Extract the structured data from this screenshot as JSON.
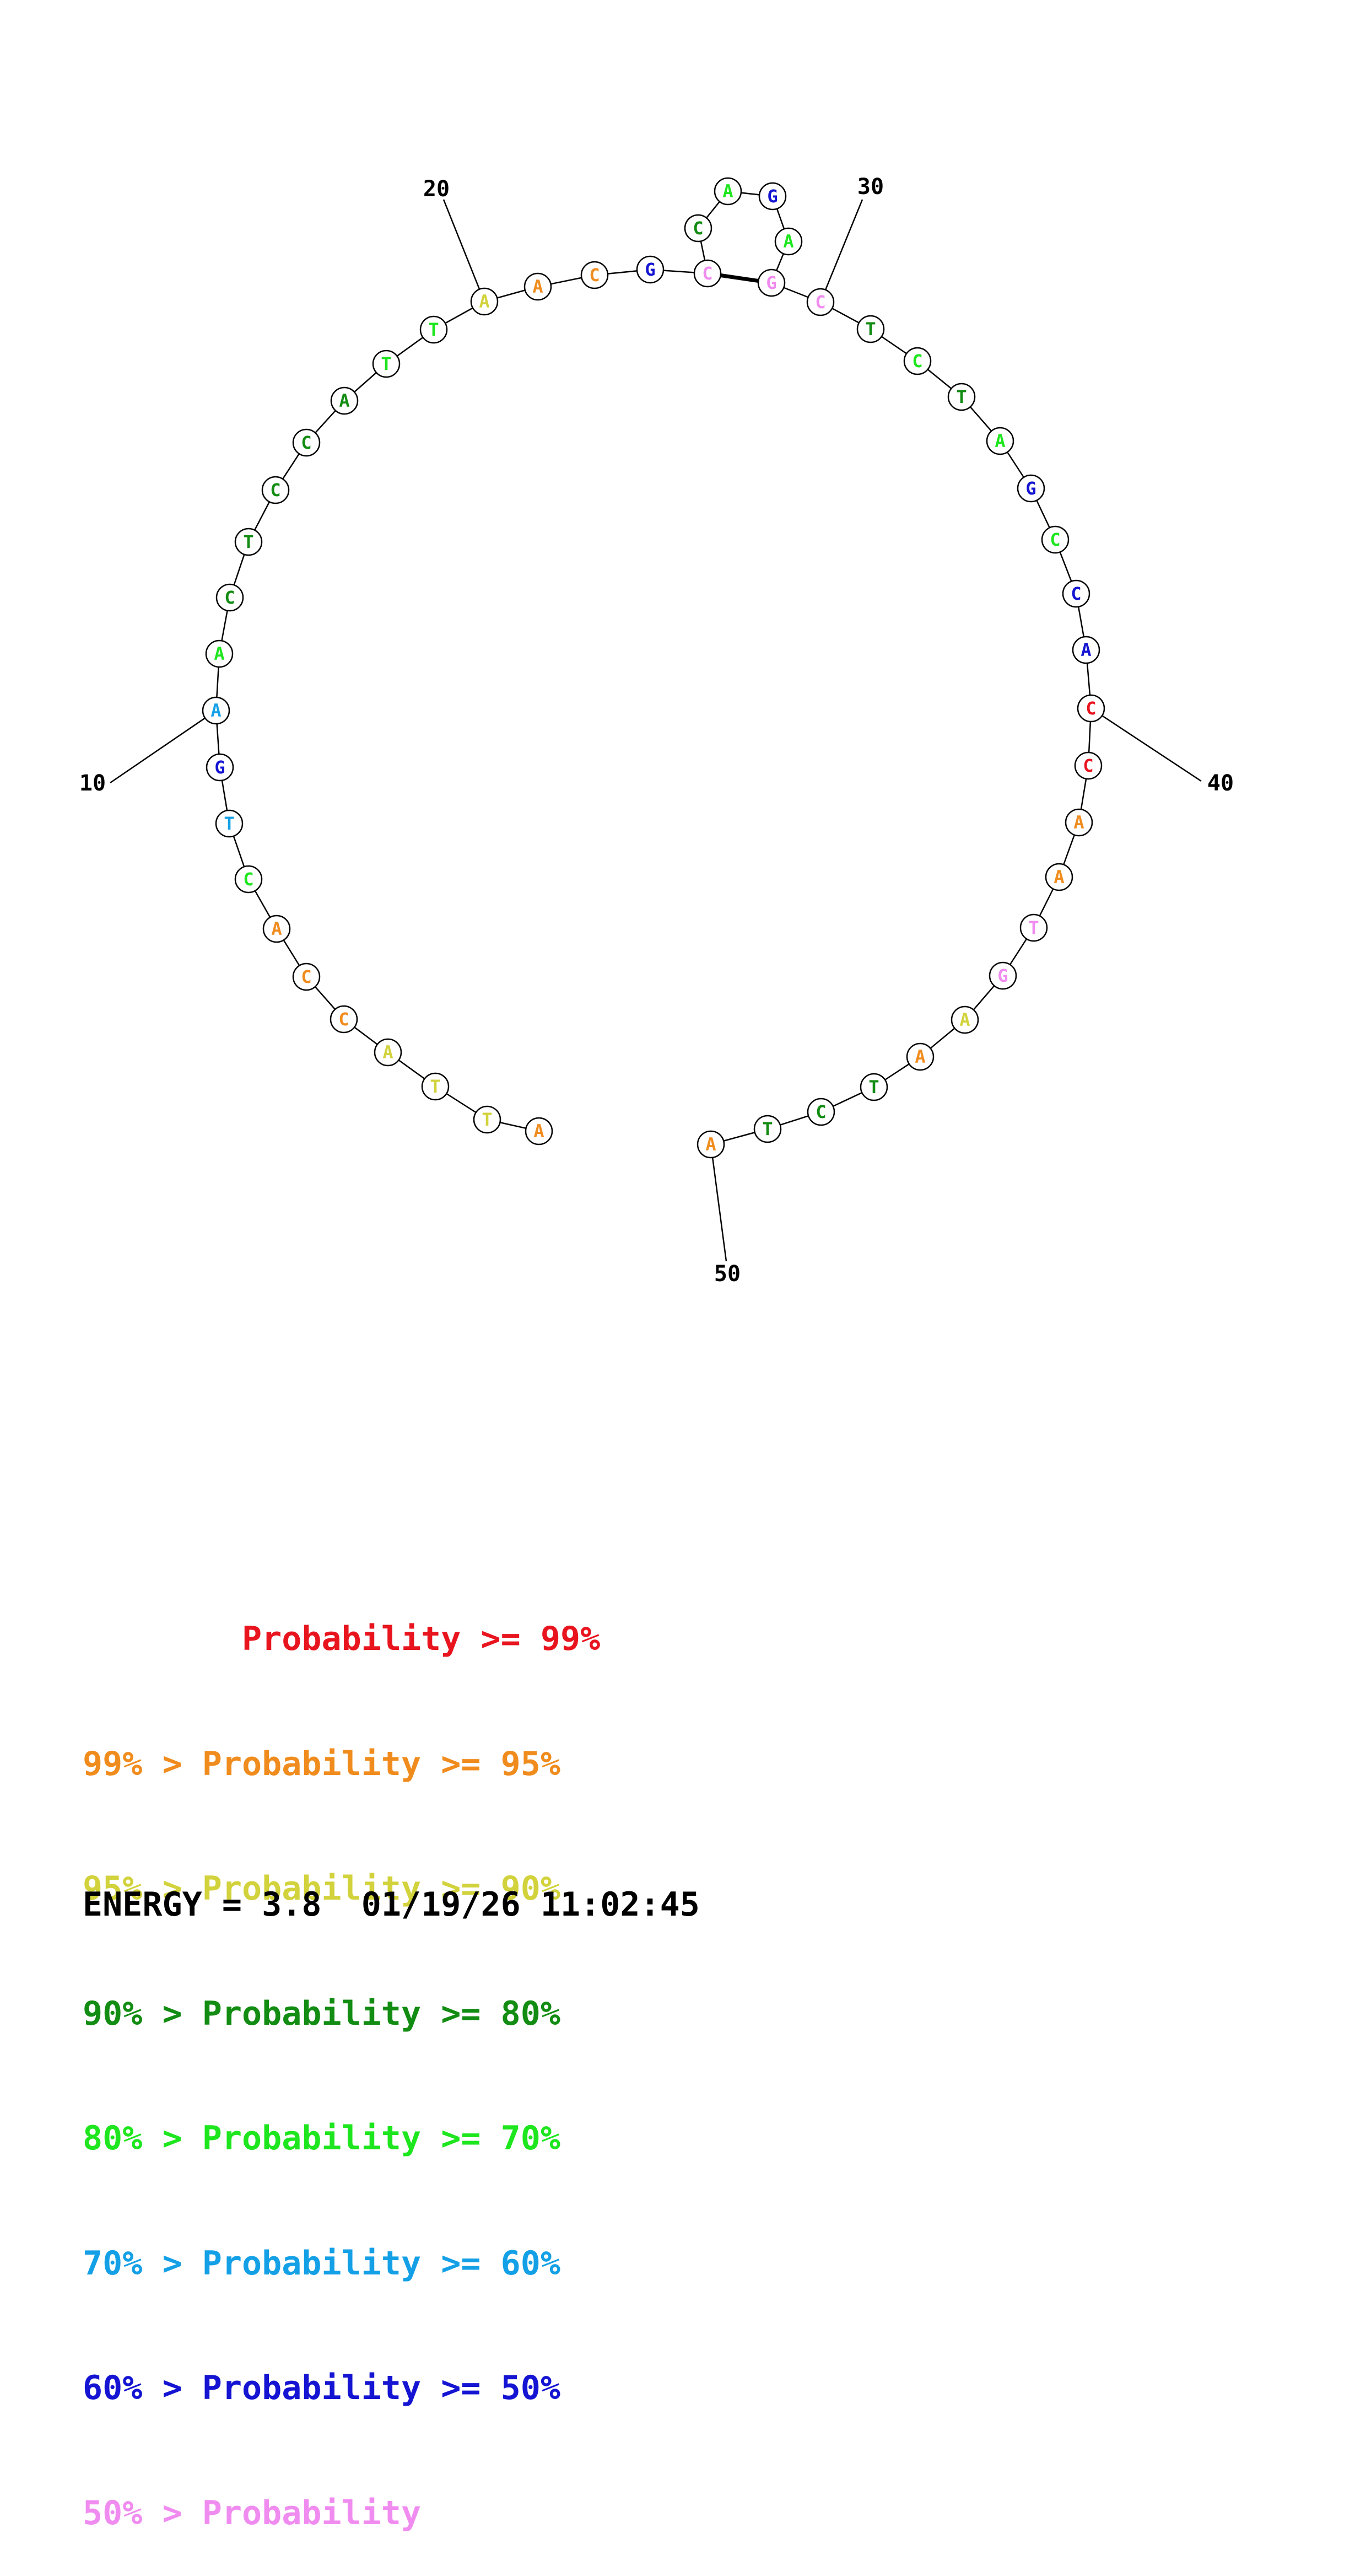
{
  "diagram": {
    "sequence": [
      "A",
      "T",
      "T",
      "A",
      "C",
      "C",
      "A",
      "C",
      "T",
      "G",
      "A",
      "A",
      "C",
      "T",
      "C",
      "C",
      "A",
      "T",
      "T",
      "A",
      "A",
      "C",
      "G",
      "C",
      "C",
      "A",
      "G",
      "A",
      "G",
      "C",
      "T",
      "C",
      "T",
      "A",
      "G",
      "C",
      "C",
      "A",
      "C",
      "C",
      "A",
      "A",
      "T",
      "G",
      "A",
      "A",
      "T",
      "C",
      "T",
      "A"
    ],
    "probability_class": [
      1,
      2,
      2,
      2,
      1,
      1,
      1,
      4,
      5,
      6,
      5,
      4,
      3,
      3,
      3,
      3,
      3,
      4,
      4,
      2,
      1,
      1,
      6,
      7,
      3,
      4,
      6,
      4,
      7,
      7,
      3,
      4,
      3,
      4,
      6,
      4,
      6,
      6,
      0,
      0,
      1,
      1,
      7,
      7,
      2,
      1,
      3,
      3,
      3,
      1
    ],
    "pairs": [
      [
        24,
        29
      ]
    ],
    "position_labels": [
      {
        "index": 10,
        "text": "10"
      },
      {
        "index": 20,
        "text": "20"
      },
      {
        "index": 30,
        "text": "30"
      },
      {
        "index": 40,
        "text": "40"
      },
      {
        "index": 50,
        "text": "50"
      }
    ]
  },
  "colors": [
    "#e8141e",
    "#f08c1e",
    "#d2d23c",
    "#128c12",
    "#1ee61e",
    "#14a0e6",
    "#1414d2",
    "#f08cf0"
  ],
  "legend": {
    "rows": [
      {
        "left": "        ",
        "right": "Probability >= 99%",
        "color": "#e8141e"
      },
      {
        "left": "99% > ",
        "right": "Probability >= 95%",
        "color": "#f08c1e"
      },
      {
        "left": "95% > ",
        "right": "Probability >= 90%",
        "color": "#d2d23c"
      },
      {
        "left": "90% > ",
        "right": "Probability >= 80%",
        "color": "#128c12"
      },
      {
        "left": "80% > ",
        "right": "Probability >= 70%",
        "color": "#1ee61e"
      },
      {
        "left": "70% > ",
        "right": "Probability >= 60%",
        "color": "#14a0e6"
      },
      {
        "left": "60% > ",
        "right": "Probability >= 50%",
        "color": "#1414d2"
      },
      {
        "left": "50% > ",
        "right": "Probability",
        "color": "#f08cf0"
      }
    ]
  },
  "footer": {
    "energy_label": "ENERGY = 3.8",
    "timestamp": "01/19/26 11:02:45"
  }
}
